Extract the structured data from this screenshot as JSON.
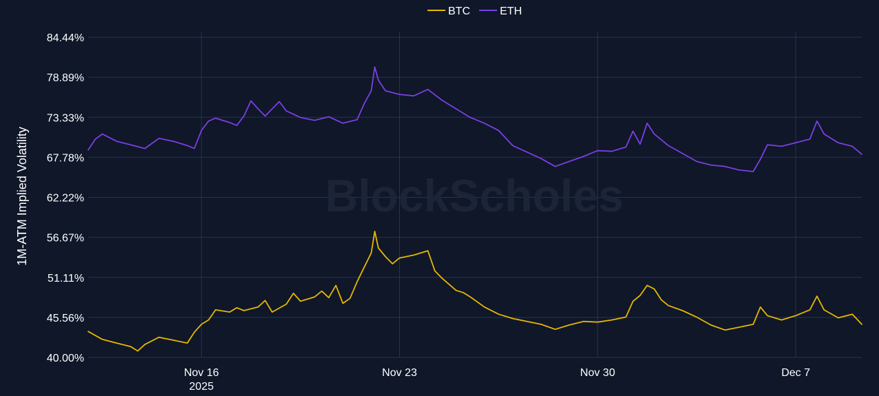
{
  "watermark": "BlockScholes",
  "colors": {
    "background": "#0f1729",
    "grid": "#243552",
    "text": "#ffffff",
    "btc": "#e8b800",
    "eth": "#7b3fe4"
  },
  "chart_data": {
    "type": "line",
    "title": "",
    "ylabel": "1M-ATM Implied Volatility",
    "xlabel": "",
    "ylim": [
      40.0,
      84.44
    ],
    "xlim": [
      "2025-11-12",
      "2025-12-09 08:00"
    ],
    "y_ticks": [
      "84.44%",
      "78.89%",
      "73.33%",
      "67.78%",
      "62.22%",
      "56.67%",
      "51.11%",
      "45.56%",
      "40.00%"
    ],
    "x_ticks": [
      {
        "date": "2025-11-16",
        "label": "Nov 16",
        "sublabel": "2025"
      },
      {
        "date": "2025-11-23",
        "label": "Nov 23",
        "sublabel": ""
      },
      {
        "date": "2025-11-30",
        "label": "Nov 30",
        "sublabel": ""
      },
      {
        "date": "2025-12-07",
        "label": "Dec 7",
        "sublabel": ""
      }
    ],
    "grid": true,
    "legend_position": "top-center",
    "series": [
      {
        "name": "BTC",
        "color": "#e8b800",
        "points": [
          [
            "2025-11-12 00:00",
            43.6
          ],
          [
            "2025-11-12 12:00",
            42.5
          ],
          [
            "2025-11-13 00:00",
            42.0
          ],
          [
            "2025-11-13 12:00",
            41.5
          ],
          [
            "2025-11-13 18:00",
            40.9
          ],
          [
            "2025-11-14 00:00",
            41.8
          ],
          [
            "2025-11-14 12:00",
            42.8
          ],
          [
            "2025-11-15 00:00",
            42.4
          ],
          [
            "2025-11-15 12:00",
            42.0
          ],
          [
            "2025-11-15 18:00",
            43.5
          ],
          [
            "2025-11-16 00:00",
            44.6
          ],
          [
            "2025-11-16 06:00",
            45.2
          ],
          [
            "2025-11-16 12:00",
            46.6
          ],
          [
            "2025-11-17 00:00",
            46.3
          ],
          [
            "2025-11-17 06:00",
            46.9
          ],
          [
            "2025-11-17 12:00",
            46.5
          ],
          [
            "2025-11-18 00:00",
            47.0
          ],
          [
            "2025-11-18 06:00",
            47.9
          ],
          [
            "2025-11-18 12:00",
            46.3
          ],
          [
            "2025-11-19 00:00",
            47.4
          ],
          [
            "2025-11-19 06:00",
            48.9
          ],
          [
            "2025-11-19 12:00",
            47.8
          ],
          [
            "2025-11-20 00:00",
            48.4
          ],
          [
            "2025-11-20 06:00",
            49.2
          ],
          [
            "2025-11-20 12:00",
            48.3
          ],
          [
            "2025-11-20 18:00",
            50.0
          ],
          [
            "2025-11-21 00:00",
            47.5
          ],
          [
            "2025-11-21 06:00",
            48.2
          ],
          [
            "2025-11-21 12:00",
            50.5
          ],
          [
            "2025-11-21 18:00",
            52.5
          ],
          [
            "2025-11-22 00:00",
            54.5
          ],
          [
            "2025-11-22 03:00",
            57.5
          ],
          [
            "2025-11-22 06:00",
            55.2
          ],
          [
            "2025-11-22 12:00",
            54.0
          ],
          [
            "2025-11-22 18:00",
            53.0
          ],
          [
            "2025-11-23 00:00",
            53.8
          ],
          [
            "2025-11-23 12:00",
            54.2
          ],
          [
            "2025-11-24 00:00",
            54.8
          ],
          [
            "2025-11-24 06:00",
            52.0
          ],
          [
            "2025-11-24 12:00",
            51.0
          ],
          [
            "2025-11-25 00:00",
            49.3
          ],
          [
            "2025-11-25 06:00",
            49.0
          ],
          [
            "2025-11-25 12:00",
            48.4
          ],
          [
            "2025-11-26 00:00",
            47.0
          ],
          [
            "2025-11-26 12:00",
            46.0
          ],
          [
            "2025-11-27 00:00",
            45.4
          ],
          [
            "2025-11-27 12:00",
            45.0
          ],
          [
            "2025-11-28 00:00",
            44.6
          ],
          [
            "2025-11-28 12:00",
            43.9
          ],
          [
            "2025-11-29 00:00",
            44.5
          ],
          [
            "2025-11-29 12:00",
            45.0
          ],
          [
            "2025-11-30 00:00",
            44.9
          ],
          [
            "2025-11-30 12:00",
            45.2
          ],
          [
            "2025-12-01 00:00",
            45.6
          ],
          [
            "2025-12-01 06:00",
            47.8
          ],
          [
            "2025-12-01 12:00",
            48.6
          ],
          [
            "2025-12-01 18:00",
            50.0
          ],
          [
            "2025-12-02 00:00",
            49.5
          ],
          [
            "2025-12-02 06:00",
            48.0
          ],
          [
            "2025-12-02 12:00",
            47.2
          ],
          [
            "2025-12-03 00:00",
            46.5
          ],
          [
            "2025-12-03 12:00",
            45.6
          ],
          [
            "2025-12-04 00:00",
            44.5
          ],
          [
            "2025-12-04 12:00",
            43.8
          ],
          [
            "2025-12-05 00:00",
            44.2
          ],
          [
            "2025-12-05 12:00",
            44.6
          ],
          [
            "2025-12-05 18:00",
            47.0
          ],
          [
            "2025-12-06 00:00",
            45.8
          ],
          [
            "2025-12-06 12:00",
            45.2
          ],
          [
            "2025-12-07 00:00",
            45.8
          ],
          [
            "2025-12-07 12:00",
            46.6
          ],
          [
            "2025-12-07 18:00",
            48.5
          ],
          [
            "2025-12-08 00:00",
            46.6
          ],
          [
            "2025-12-08 12:00",
            45.5
          ],
          [
            "2025-12-09 00:00",
            46.0
          ],
          [
            "2025-12-09 08:00",
            44.6
          ]
        ]
      },
      {
        "name": "ETH",
        "color": "#7b3fe4",
        "points": [
          [
            "2025-11-12 00:00",
            68.8
          ],
          [
            "2025-11-12 06:00",
            70.3
          ],
          [
            "2025-11-12 12:00",
            71.0
          ],
          [
            "2025-11-13 00:00",
            70.0
          ],
          [
            "2025-11-13 12:00",
            69.5
          ],
          [
            "2025-11-14 00:00",
            69.0
          ],
          [
            "2025-11-14 12:00",
            70.4
          ],
          [
            "2025-11-15 00:00",
            70.0
          ],
          [
            "2025-11-15 12:00",
            69.4
          ],
          [
            "2025-11-15 18:00",
            69.0
          ],
          [
            "2025-11-16 00:00",
            71.5
          ],
          [
            "2025-11-16 06:00",
            72.8
          ],
          [
            "2025-11-16 12:00",
            73.2
          ],
          [
            "2025-11-17 00:00",
            72.6
          ],
          [
            "2025-11-17 06:00",
            72.2
          ],
          [
            "2025-11-17 12:00",
            73.5
          ],
          [
            "2025-11-17 18:00",
            75.6
          ],
          [
            "2025-11-18 00:00",
            74.5
          ],
          [
            "2025-11-18 06:00",
            73.5
          ],
          [
            "2025-11-18 18:00",
            75.5
          ],
          [
            "2025-11-19 00:00",
            74.2
          ],
          [
            "2025-11-19 12:00",
            73.3
          ],
          [
            "2025-11-20 00:00",
            72.9
          ],
          [
            "2025-11-20 12:00",
            73.4
          ],
          [
            "2025-11-21 00:00",
            72.5
          ],
          [
            "2025-11-21 12:00",
            73.0
          ],
          [
            "2025-11-21 18:00",
            75.2
          ],
          [
            "2025-11-22 00:00",
            77.0
          ],
          [
            "2025-11-22 03:00",
            80.3
          ],
          [
            "2025-11-22 06:00",
            78.5
          ],
          [
            "2025-11-22 12:00",
            77.0
          ],
          [
            "2025-11-23 00:00",
            76.5
          ],
          [
            "2025-11-23 12:00",
            76.3
          ],
          [
            "2025-11-24 00:00",
            77.2
          ],
          [
            "2025-11-24 12:00",
            75.7
          ],
          [
            "2025-11-25 00:00",
            74.5
          ],
          [
            "2025-11-25 12:00",
            73.3
          ],
          [
            "2025-11-26 00:00",
            72.5
          ],
          [
            "2025-11-26 12:00",
            71.5
          ],
          [
            "2025-11-27 00:00",
            69.4
          ],
          [
            "2025-11-27 12:00",
            68.5
          ],
          [
            "2025-11-28 00:00",
            67.6
          ],
          [
            "2025-11-28 12:00",
            66.5
          ],
          [
            "2025-11-29 00:00",
            67.2
          ],
          [
            "2025-11-29 12:00",
            67.9
          ],
          [
            "2025-11-30 00:00",
            68.7
          ],
          [
            "2025-11-30 12:00",
            68.6
          ],
          [
            "2025-12-01 00:00",
            69.2
          ],
          [
            "2025-12-01 06:00",
            71.4
          ],
          [
            "2025-12-01 12:00",
            69.6
          ],
          [
            "2025-12-01 18:00",
            72.5
          ],
          [
            "2025-12-02 00:00",
            71.0
          ],
          [
            "2025-12-02 12:00",
            69.4
          ],
          [
            "2025-12-03 00:00",
            68.3
          ],
          [
            "2025-12-03 12:00",
            67.2
          ],
          [
            "2025-12-04 00:00",
            66.7
          ],
          [
            "2025-12-04 12:00",
            66.5
          ],
          [
            "2025-12-05 00:00",
            66.0
          ],
          [
            "2025-12-05 12:00",
            65.8
          ],
          [
            "2025-12-05 18:00",
            67.5
          ],
          [
            "2025-12-06 00:00",
            69.5
          ],
          [
            "2025-12-06 12:00",
            69.3
          ],
          [
            "2025-12-07 00:00",
            69.8
          ],
          [
            "2025-12-07 12:00",
            70.3
          ],
          [
            "2025-12-07 18:00",
            72.8
          ],
          [
            "2025-12-08 00:00",
            71.0
          ],
          [
            "2025-12-08 12:00",
            69.8
          ],
          [
            "2025-12-09 00:00",
            69.3
          ],
          [
            "2025-12-09 08:00",
            68.2
          ]
        ]
      }
    ]
  }
}
